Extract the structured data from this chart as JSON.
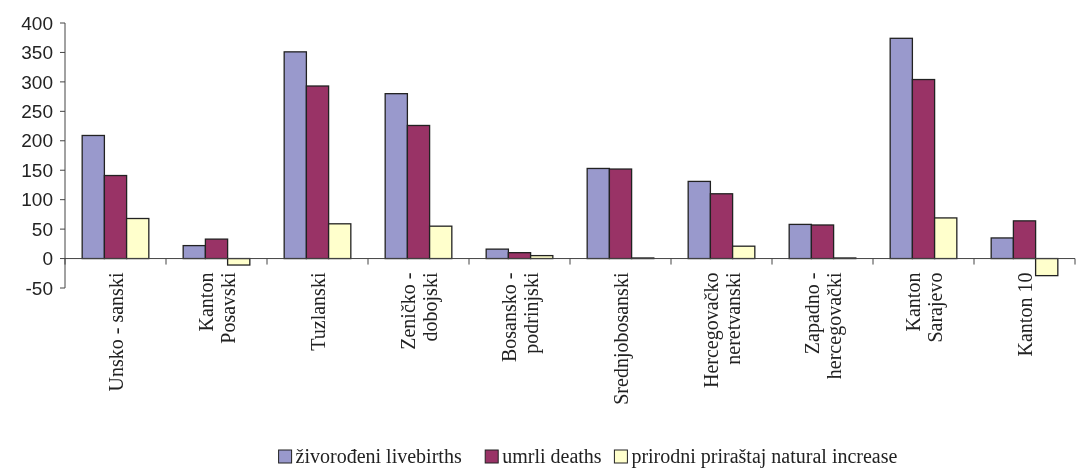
{
  "chart_data": {
    "type": "bar",
    "categories": [
      "Unsko - sanski",
      "Kanton\nPosavski",
      "Tuzlanski",
      "Zeničko -\ndobojski",
      "Bosansko -\npodrinjski",
      "Srednjobosanski",
      "Hercegovačko\nneretvanski",
      "Zapadno -\nhercegovački",
      "Kanton\nSarajevo",
      "Kanton 10"
    ],
    "series": [
      {
        "name": "živorođeni livebirths",
        "color": "#9999cc",
        "values": [
          209,
          22,
          351,
          280,
          16,
          153,
          131,
          58,
          374,
          35
        ]
      },
      {
        "name": "umrli deaths",
        "color": "#993366",
        "values": [
          141,
          33,
          293,
          226,
          10,
          152,
          110,
          57,
          304,
          64
        ]
      },
      {
        "name": "prirodni priraštaj natural increase",
        "color": "#ffffcc",
        "values": [
          68,
          -11,
          59,
          55,
          5,
          1,
          21,
          1,
          69,
          -29
        ]
      }
    ],
    "ylim": [
      -50,
      400
    ],
    "yticks": [
      -50,
      0,
      50,
      100,
      150,
      200,
      250,
      300,
      350,
      400
    ],
    "grid": false,
    "legend": "bottom"
  }
}
